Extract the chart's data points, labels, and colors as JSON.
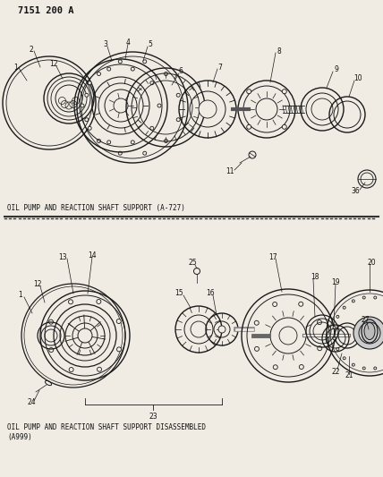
{
  "title_top": "7151 200 A",
  "label_top": "OIL PUMP AND REACTION SHAFT SUPPORT (A-727)",
  "label_bottom_1": "OIL PUMP AND REACTION SHAFT SUPPORT DISASSEMBLED",
  "label_bottom_2": "(A999)",
  "bg_color": "#f0ece4",
  "line_color": "#1a1a1a",
  "text_color": "#111111",
  "fig_width": 4.28,
  "fig_height": 5.33,
  "dpi": 100
}
